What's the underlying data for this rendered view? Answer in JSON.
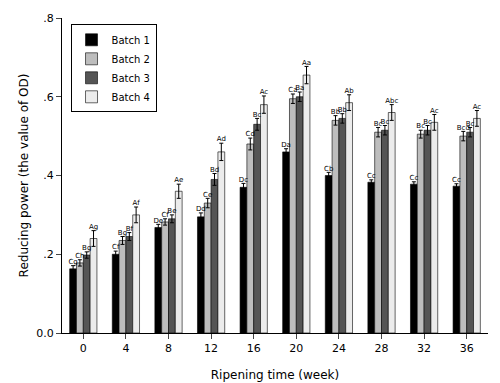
{
  "chart_data": {
    "type": "bar",
    "x_label": "Ripening time (week)",
    "y_label": "Reducing power (the value of OD)",
    "categories": [
      "0",
      "4",
      "8",
      "12",
      "16",
      "20",
      "24",
      "28",
      "32",
      "36"
    ],
    "series": [
      {
        "name": "Batch 1",
        "color": "#000000",
        "values": [
          0.163,
          0.2,
          0.268,
          0.295,
          0.37,
          0.46,
          0.4,
          0.383,
          0.378,
          0.373
        ],
        "errors": [
          0.008,
          0.008,
          0.008,
          0.01,
          0.01,
          0.008,
          0.008,
          0.006,
          0.006,
          0.006
        ],
        "labels": [
          "Cg",
          "Cf",
          "De",
          "Dd",
          "Dc",
          "Da",
          "Cb",
          "Cc",
          "Cc",
          "Cc"
        ]
      },
      {
        "name": "Batch 2",
        "color": "#bdbdbd",
        "values": [
          0.178,
          0.235,
          0.282,
          0.33,
          0.48,
          0.595,
          0.54,
          0.51,
          0.505,
          0.5
        ],
        "errors": [
          0.008,
          0.01,
          0.008,
          0.012,
          0.015,
          0.012,
          0.012,
          0.012,
          0.01,
          0.012
        ],
        "labels": [
          "Ch",
          "Bg",
          "Cf",
          "Ce",
          "Cd",
          "Ca",
          "Bb",
          "Bc",
          "Bc",
          "Bcd"
        ]
      },
      {
        "name": "Batch 3",
        "color": "#555555",
        "values": [
          0.198,
          0.245,
          0.29,
          0.39,
          0.53,
          0.6,
          0.545,
          0.515,
          0.515,
          0.51
        ],
        "errors": [
          0.008,
          0.01,
          0.01,
          0.015,
          0.015,
          0.012,
          0.012,
          0.012,
          0.012,
          0.012
        ],
        "labels": [
          "Bg",
          "Bf",
          "Be",
          "Bd",
          "Bc",
          "Ba",
          "Bb",
          "Bc",
          "Bc",
          "Bc"
        ]
      },
      {
        "name": "Batch 4",
        "color": "#ececec",
        "values": [
          0.24,
          0.3,
          0.36,
          0.46,
          0.58,
          0.655,
          0.585,
          0.56,
          0.535,
          0.545
        ],
        "errors": [
          0.02,
          0.02,
          0.018,
          0.022,
          0.022,
          0.022,
          0.02,
          0.02,
          0.02,
          0.02
        ],
        "labels": [
          "Ag",
          "Af",
          "Ae",
          "Ad",
          "Ac",
          "Aa",
          "Ab",
          "Abc",
          "Ac",
          "Ac"
        ]
      }
    ],
    "ylim": [
      0,
      0.8
    ],
    "yticks": [
      {
        "value": 0,
        "label": "0.0"
      },
      {
        "value": 0.2,
        "label": ".2"
      },
      {
        "value": 0.4,
        "label": ".4"
      },
      {
        "value": 0.6,
        "label": ".6"
      },
      {
        "value": 0.8,
        "label": ".8"
      }
    ],
    "grid": false,
    "legend": "top left"
  }
}
